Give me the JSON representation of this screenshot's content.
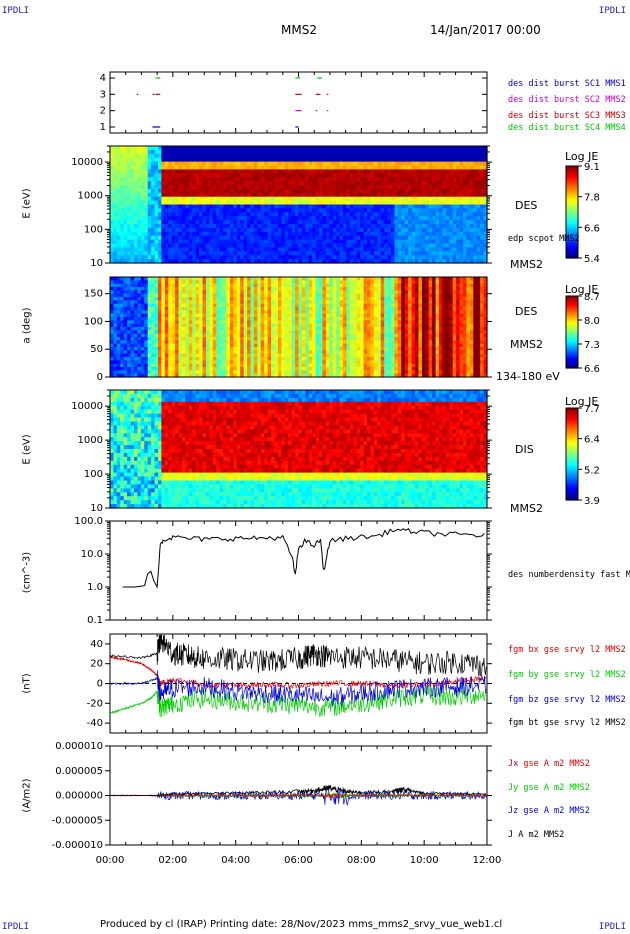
{
  "header": {
    "corner_left": "IPDLI",
    "corner_right": "IPDLI",
    "spacecraft": "MMS2",
    "date": "14/Jan/2017 00:00"
  },
  "footer": {
    "text": "Produced by cl (IRAP)   Printing date: 28/Nov/2023   mms_mms2_srvy_vue_web1.cl",
    "corner_left": "IPDLI",
    "corner_right": "IPDLI"
  },
  "colors": {
    "mms1": "#0000c8",
    "mms2": "#c800c8",
    "mms3": "#c80000",
    "mms4": "#00c800",
    "x": "#dd0000",
    "y": "#00cc00",
    "z": "#0000dd",
    "t": "#000000"
  },
  "chart_data": [
    {
      "type": "scatter",
      "title": "",
      "ylabel": "",
      "yticks": [
        "1",
        "2",
        "3",
        "4"
      ],
      "legend": [
        "des dist burst SC1 MMS1",
        "des dist burst SC2 MMS2",
        "des dist burst SC3 MMS3",
        "des dist burst SC4 MMS4"
      ],
      "series": [
        {
          "name": "des dist burst SC1 MMS1",
          "level": 1,
          "intervals": [
            [
              1.35,
              1.6
            ],
            [
              5.9,
              6.0
            ]
          ]
        },
        {
          "name": "des dist burst SC2 MMS2",
          "level": 2,
          "intervals": [
            [
              5.9,
              6.1
            ],
            [
              6.55,
              6.6
            ],
            [
              6.9,
              6.95
            ]
          ]
        },
        {
          "name": "des dist burst SC3 MMS3",
          "level": 3,
          "intervals": [
            [
              0.85,
              0.9
            ],
            [
              1.35,
              1.42
            ],
            [
              1.45,
              1.6
            ],
            [
              5.9,
              6.1
            ],
            [
              6.55,
              6.7
            ],
            [
              6.9,
              6.95
            ]
          ]
        },
        {
          "name": "des dist burst SC4 MMS4",
          "level": 4,
          "intervals": [
            [
              1.45,
              1.6
            ],
            [
              5.9,
              6.05
            ],
            [
              6.6,
              6.75
            ]
          ]
        }
      ]
    },
    {
      "type": "heatmap",
      "ylabel": "E (eV)",
      "yticks": [
        "10",
        "100",
        "1000",
        "10000"
      ],
      "ylim": [
        10,
        30000
      ],
      "right_labels": [
        "DES",
        "edp scpot MMS2",
        "MMS2"
      ],
      "colorbar": {
        "title": "Log JE",
        "ticks": [
          "9.1",
          "7.8",
          "6.6",
          "5.4"
        ],
        "range": [
          5.4,
          9.1
        ]
      }
    },
    {
      "type": "heatmap",
      "ylabel": "a (deg)",
      "yticks": [
        "0",
        "50",
        "100",
        "150"
      ],
      "ylim": [
        0,
        180
      ],
      "right_labels": [
        "DES",
        "MMS2",
        "134-180 eV"
      ],
      "colorbar": {
        "title": "Log JE",
        "ticks": [
          "8.7",
          "8.0",
          "7.3",
          "6.6"
        ],
        "range": [
          6.6,
          8.7
        ]
      }
    },
    {
      "type": "heatmap",
      "ylabel": "E (eV)",
      "yticks": [
        "10",
        "100",
        "1000",
        "10000"
      ],
      "ylim": [
        10,
        30000
      ],
      "right_labels": [
        "DIS",
        "MMS2"
      ],
      "colorbar": {
        "title": "Log JE",
        "ticks": [
          "7.7",
          "6.4",
          "5.2",
          "3.9"
        ],
        "range": [
          3.9,
          7.7
        ]
      }
    },
    {
      "type": "line",
      "ylabel": "(cm^-3)",
      "yticks": [
        "0.1",
        "1.0",
        "10.0",
        "100.0"
      ],
      "ylim": [
        0.1,
        100
      ],
      "legend": [
        "des numberdensity fast M"
      ],
      "series": [
        {
          "name": "des numberdensity fast M",
          "x": [
            0.4,
            0.8,
            1.1,
            1.2,
            1.3,
            1.4,
            1.5,
            1.55,
            1.6,
            1.7,
            2.0,
            2.5,
            3.0,
            3.5,
            4.0,
            4.5,
            5.0,
            5.5,
            5.8,
            5.9,
            6.0,
            6.2,
            6.5,
            6.7,
            6.8,
            7.0,
            7.5,
            8.0,
            8.5,
            9.0,
            9.5,
            10.0,
            10.5,
            11.0,
            11.5,
            12.0
          ],
          "y": [
            1.0,
            1.0,
            1.1,
            2.5,
            3.0,
            1.5,
            1.0,
            4.0,
            20,
            28,
            32,
            30,
            28,
            29,
            30,
            30,
            31,
            32,
            8,
            2.2,
            15,
            25,
            18,
            27,
            3.0,
            25,
            30,
            33,
            35,
            55,
            50,
            45,
            40,
            40,
            38,
            36
          ]
        }
      ]
    },
    {
      "type": "line",
      "ylabel": "(nT)",
      "yticks": [
        "-40",
        "-20",
        "0",
        "20",
        "40"
      ],
      "ylim": [
        -50,
        50
      ],
      "legend": [
        "fgm bx gse srvy l2 MMS2",
        "fgm by gse srvy l2 MMS2",
        "fgm bz gse srvy l2 MMS2",
        "fgm bt gse srvy l2 MMS2"
      ],
      "series": [
        {
          "name": "fgm bx gse srvy l2 MMS2",
          "x": [
            0,
            0.5,
            1.0,
            1.3,
            1.5,
            1.6,
            2.0,
            3.0,
            4.0,
            5.0,
            6.0,
            7.0,
            8.0,
            9.0,
            10.0,
            11.0,
            12.0
          ],
          "y": [
            27,
            24,
            20,
            14,
            8,
            0,
            4,
            -1,
            -2,
            -1,
            -2,
            0,
            0,
            -2,
            -1,
            2,
            5
          ]
        },
        {
          "name": "fgm by gse srvy l2 MMS2",
          "x": [
            0,
            0.5,
            1.0,
            1.3,
            1.5,
            1.6,
            2.0,
            3.0,
            4.0,
            5.0,
            6.0,
            7.0,
            8.0,
            9.0,
            10.0,
            11.0,
            12.0
          ],
          "y": [
            -30,
            -25,
            -20,
            -15,
            -8,
            -25,
            -20,
            -15,
            -18,
            -20,
            -22,
            -24,
            -20,
            -15,
            -12,
            -14,
            -10
          ]
        },
        {
          "name": "fgm bz gse srvy l2 MMS2",
          "x": [
            0,
            1.0,
            1.5,
            1.6,
            2.0,
            3.0,
            4.0,
            5.0,
            6.0,
            7.0,
            8.0,
            9.0,
            10.0,
            11.0,
            12.0
          ],
          "y": [
            0,
            0,
            5,
            -10,
            -5,
            -3,
            -8,
            -10,
            -12,
            -15,
            -10,
            -5,
            -4,
            -3,
            -2
          ]
        },
        {
          "name": "fgm bt gse srvy l2 MMS2",
          "x": [
            0,
            1.0,
            1.5,
            1.6,
            2.0,
            2.5,
            3.0,
            4.0,
            5.0,
            6.0,
            6.5,
            7.0,
            8.0,
            9.0,
            10.0,
            11.0,
            12.0
          ],
          "y": [
            28,
            26,
            30,
            45,
            30,
            28,
            25,
            24,
            22,
            25,
            30,
            27,
            26,
            24,
            20,
            22,
            18
          ]
        }
      ]
    },
    {
      "type": "line",
      "ylabel": "(A/m2)",
      "yticks": [
        "-0.000010",
        "-0.000005",
        "0.000000",
        "0.000005",
        "0.000010"
      ],
      "ylim": [
        -1e-05,
        1e-05
      ],
      "legend": [
        "Jx gse A m2 MMS2",
        "Jy gse A m2 MMS2",
        "Jz gse A m2 MMS2",
        "J A m2 MMS2"
      ],
      "series": [
        {
          "name": "J A m2 MMS2",
          "x": [
            0,
            1.5,
            2.0,
            4.0,
            6.0,
            6.5,
            7.0,
            7.5,
            8.0,
            9.0,
            9.3,
            10.0,
            12.0
          ],
          "y": [
            0,
            0,
            3e-07,
            5e-07,
            8e-07,
            1e-06,
            1.5e-06,
            8e-07,
            6e-07,
            8e-07,
            1.2e-06,
            5e-07,
            3e-07
          ]
        }
      ],
      "xticks": [
        "00:00",
        "02:00",
        "04:00",
        "06:00",
        "08:00",
        "10:00",
        "12:00"
      ],
      "xlim": [
        0,
        12
      ]
    }
  ]
}
